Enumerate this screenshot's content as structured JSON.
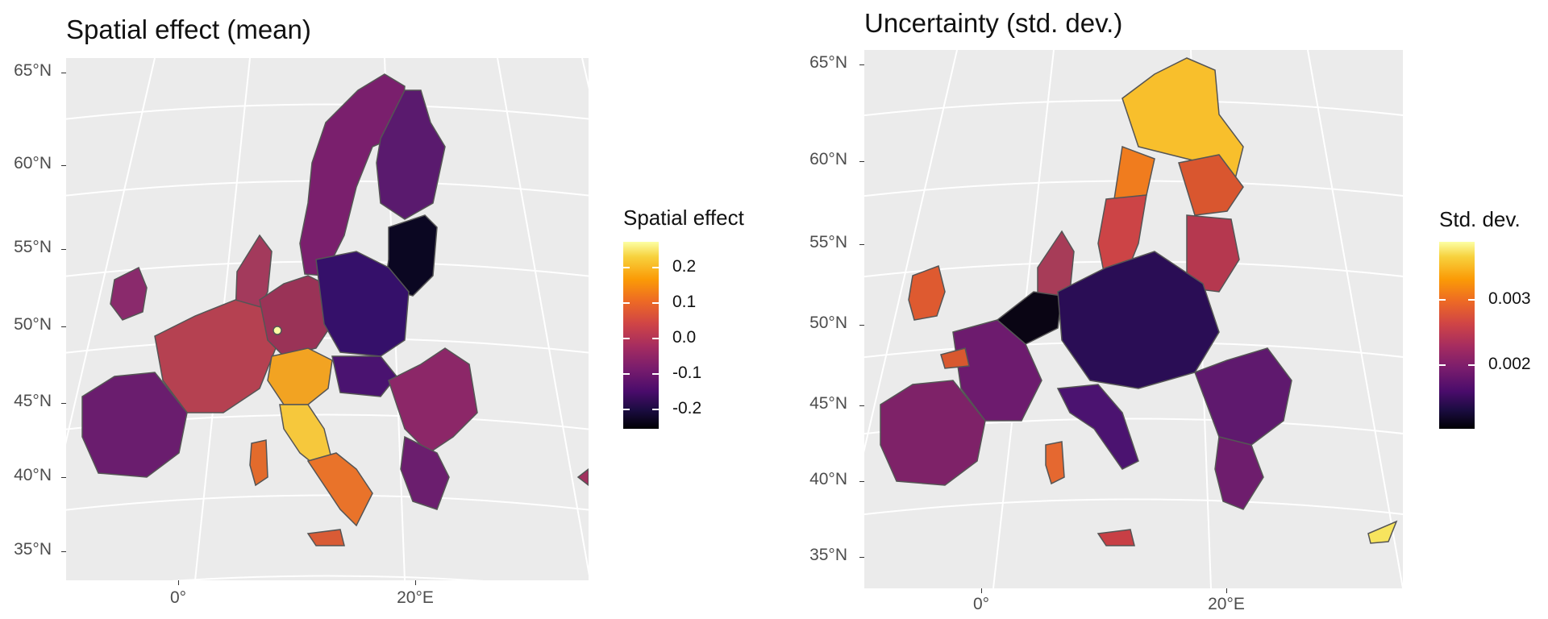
{
  "left": {
    "title": "Spatial effect (mean)",
    "y_ticks": [
      "65°N",
      "60°N",
      "55°N",
      "50°N",
      "45°N",
      "40°N",
      "35°N"
    ],
    "x_ticks": [
      "0°",
      "20°E"
    ],
    "legend": {
      "title": "Spatial effect",
      "labels": [
        "0.2",
        "0.1",
        "0.0",
        "-0.1",
        "-0.2"
      ]
    }
  },
  "right": {
    "title": "Uncertainty (std. dev.)",
    "y_ticks": [
      "65°N",
      "60°N",
      "55°N",
      "50°N",
      "45°N",
      "40°N",
      "35°N"
    ],
    "x_ticks": [
      "0°",
      "20°E"
    ],
    "legend": {
      "title": "Std. dev.",
      "labels": [
        "0.003",
        "0.002"
      ]
    }
  },
  "colors": {
    "panel_bg": "#ebebeb",
    "grid": "#ffffff",
    "region_border": "#555555",
    "colormap": "inferno"
  }
}
